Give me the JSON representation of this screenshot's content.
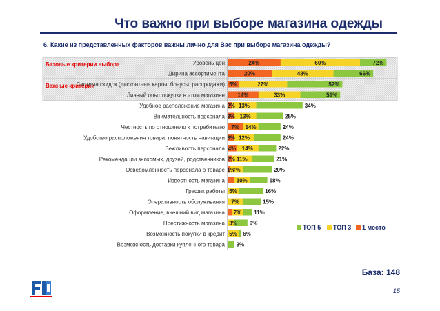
{
  "slide": {
    "title": "Что важно при выборе магазина одежды",
    "question": "6. Какие из представленных факторов важны лично для Вас при выборе магазина одежды?",
    "base": "База: 148",
    "page_number": "15"
  },
  "chart_data": {
    "type": "bar",
    "orientation": "horizontal",
    "stacking": "overlay",
    "categories": [
      "Уровень цен",
      "Ширина ассортимента",
      "Система скидок (дисконтные карты, бонусы, распродажи)",
      "Личный опыт покупки в этом магазине",
      "Удобное расположение магазина",
      "Внимательность персонала",
      "Честность по отношению к потребителю",
      "Удобство расположения товара, понятность навигации",
      "Вежливость персонала",
      "Рекомендации знакомых, друзей, родственников",
      "Осведомленность персонала о товаре",
      "Известность магазина",
      "График работы",
      "Оперативность обслуживания",
      "Оформление, внешний вид магазина",
      "Престижность магазина",
      "Возможность покупки в кредит",
      "Возможность доставки купленного товара"
    ],
    "series": [
      {
        "name": "ТОП 5",
        "color": "#8dc63f",
        "values": [
          72,
          66,
          52,
          51,
          34,
          25,
          24,
          24,
          22,
          21,
          20,
          18,
          16,
          15,
          11,
          9,
          6,
          3
        ]
      },
      {
        "name": "ТОП 3",
        "color": "#f5d327",
        "values": [
          60,
          48,
          27,
          33,
          13,
          13,
          14,
          12,
          14,
          11,
          7,
          10,
          5,
          7,
          7,
          3,
          5,
          0
        ]
      },
      {
        "name": "1 место",
        "color": "#f26522",
        "values": [
          24,
          20,
          5,
          14,
          2,
          3,
          7,
          3,
          4,
          2,
          1,
          3,
          0,
          0,
          2,
          0,
          0,
          0
        ]
      }
    ],
    "value_labels": [
      [
        "72%",
        "60%",
        "24%"
      ],
      [
        "66%",
        "48%",
        "20%"
      ],
      [
        "52%",
        "27%",
        "5%"
      ],
      [
        "51%",
        "33%",
        "14%"
      ],
      [
        "34%",
        "13%",
        "2%"
      ],
      [
        "25%",
        "13%",
        "3%"
      ],
      [
        "24%",
        "14%",
        "7%"
      ],
      [
        "24%",
        "12%",
        "3%"
      ],
      [
        "22%",
        "14%",
        "4%"
      ],
      [
        "21%",
        "11%",
        "2%"
      ],
      [
        "20%",
        "7%",
        "1%"
      ],
      [
        "18%",
        "10%",
        ""
      ],
      [
        "16%",
        "5%",
        ""
      ],
      [
        "15%",
        "7%",
        ""
      ],
      [
        "11%",
        "7%",
        ""
      ],
      [
        "9%",
        "3%",
        ""
      ],
      [
        "6%",
        "5%",
        ""
      ],
      [
        "3%",
        "",
        ""
      ]
    ],
    "groups": [
      {
        "label": "Базовые критерии выбора",
        "rows": [
          0,
          1
        ]
      },
      {
        "label": "Важные критерии",
        "rows": [
          2,
          3
        ]
      }
    ],
    "legend": [
      "ТОП 5",
      "ТОП 3",
      "1 место"
    ],
    "xlim": [
      0,
      100
    ],
    "grid": false,
    "legend_position": "right"
  }
}
